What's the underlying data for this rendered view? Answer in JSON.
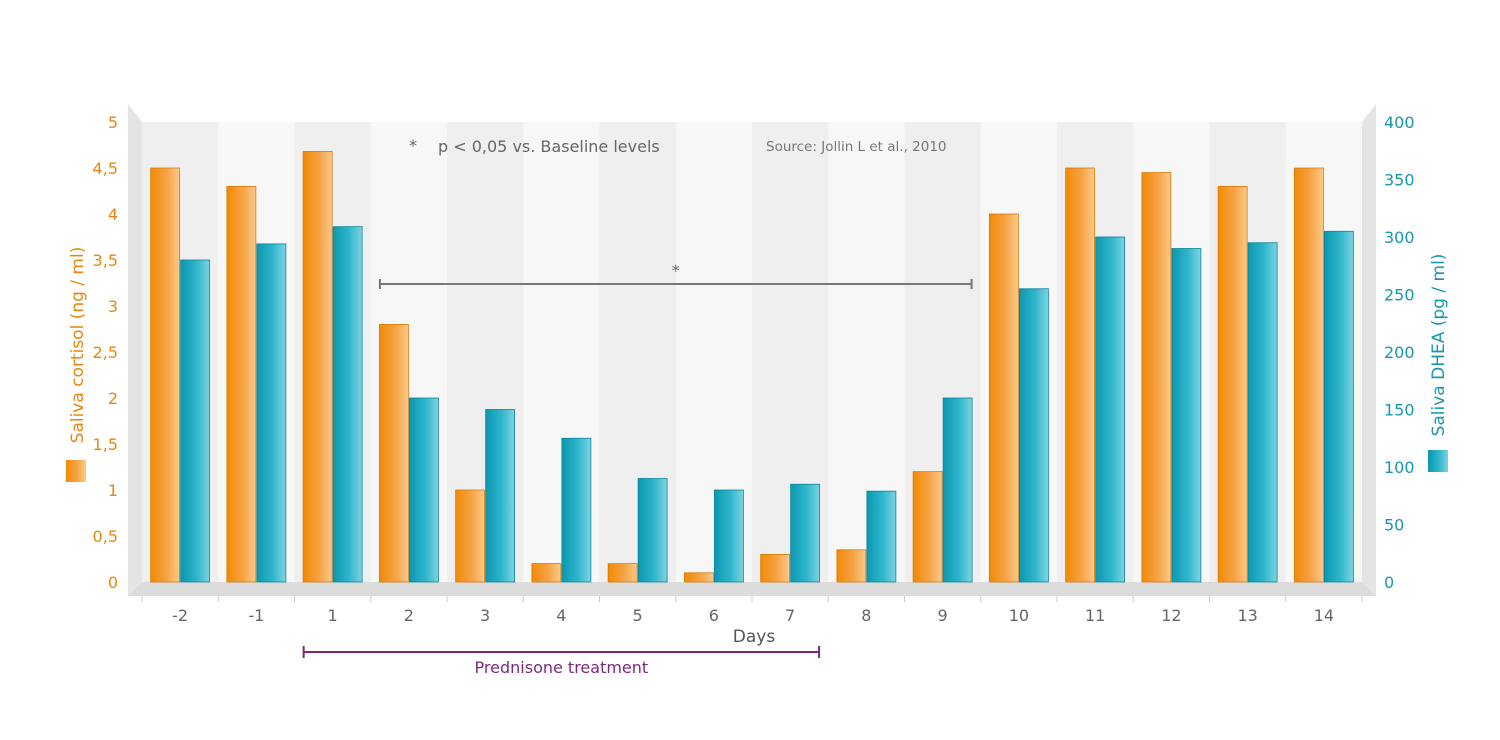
{
  "chart_data": {
    "type": "bar",
    "categories": [
      "-2",
      "-1",
      "1",
      "2",
      "3",
      "4",
      "5",
      "6",
      "7",
      "8",
      "9",
      "10",
      "11",
      "12",
      "13",
      "14"
    ],
    "series": [
      {
        "name": "Saliva cortisol (ng / ml)",
        "axis": "left",
        "color": "#f0920f",
        "values": [
          4.5,
          4.3,
          4.68,
          2.8,
          1.0,
          0.2,
          0.2,
          0.1,
          0.3,
          0.35,
          1.2,
          4.0,
          4.5,
          4.45,
          4.3,
          4.5
        ]
      },
      {
        "name": "Saliva DHEA (pg / ml)",
        "axis": "right",
        "color": "#1aa3bb",
        "values": [
          280,
          294,
          309,
          160,
          150,
          125,
          90,
          80,
          85,
          79,
          160,
          255,
          300,
          290,
          295,
          305
        ]
      }
    ],
    "xlabel": "Days",
    "ylabel_left": "Saliva cortisol (ng / ml)",
    "ylabel_right": "Saliva DHEA (pg / ml)",
    "ylim_left": [
      0,
      5
    ],
    "ylim_right": [
      0,
      400
    ],
    "yticks_left": [
      "0",
      "0,5",
      "1",
      "1,5",
      "2",
      "2,5",
      "3",
      "3,5",
      "4",
      "4,5",
      "5"
    ],
    "yticks_right": [
      "0",
      "50",
      "100",
      "150",
      "200",
      "250",
      "300",
      "350",
      "400"
    ],
    "annotations": {
      "significance_note_mark": "*",
      "significance_note": "p < 0,05 vs. Baseline levels",
      "source": "Source: Jollin L et al., 2010",
      "significance_bracket": {
        "from": "2",
        "to": "9",
        "label": "*"
      },
      "treatment_bracket": {
        "from": "1",
        "to": "7",
        "label": "Prednisone treatment"
      }
    },
    "grid": false,
    "legend": "axis-side swatches"
  }
}
